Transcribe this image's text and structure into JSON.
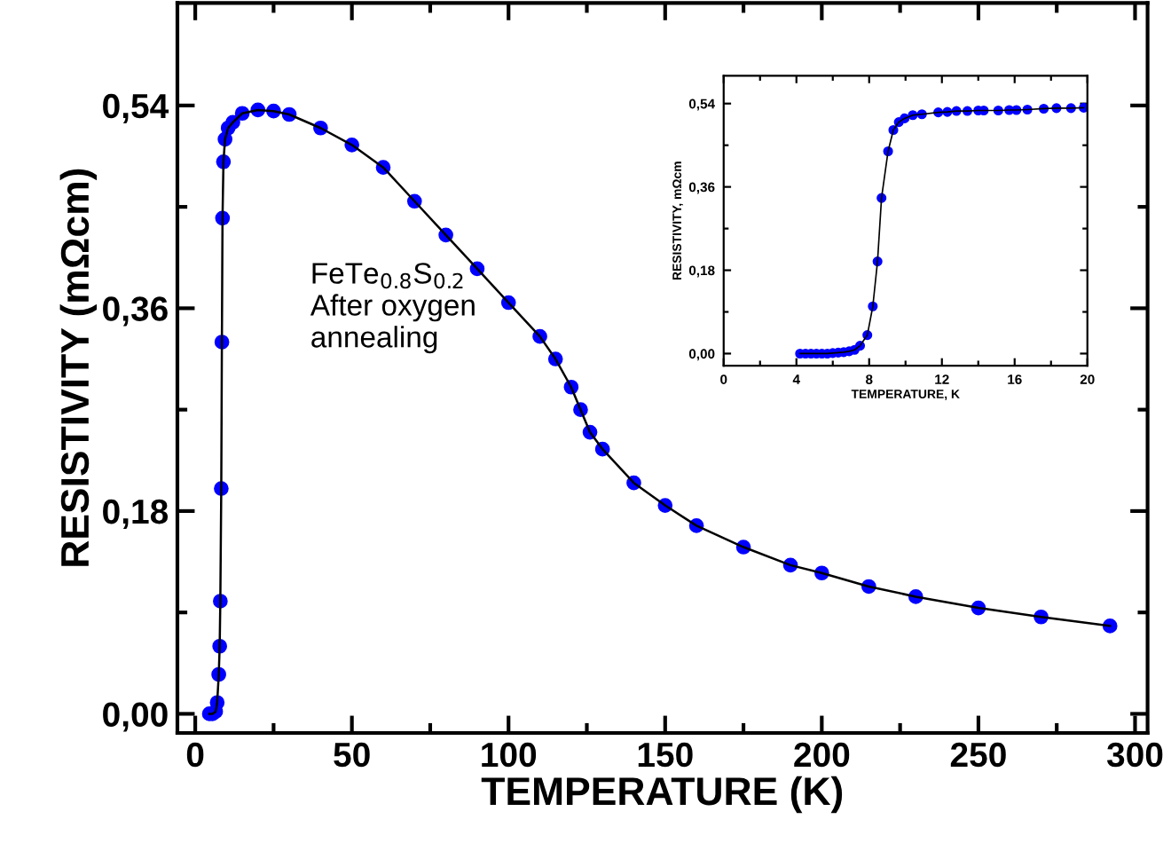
{
  "chart_data": [
    {
      "type": "line",
      "xlabel": "TEMPERATURE (K)",
      "ylabel": "RESISTIVITY (mΩcm)",
      "marker": "circle",
      "line_style": "solid",
      "grid": false,
      "legend": false,
      "annotations": [
        "FeTe$_{0.8}$S$_{0.2}$\nAfter oxygen\nannealing"
      ],
      "xlim": [
        -5.7,
        304
      ],
      "ylim": [
        -0.017,
        0.631
      ],
      "xticks": [
        0,
        {
          "value": 25,
          "label": null
        },
        50,
        {
          "value": 75,
          "label": null
        },
        100,
        {
          "value": 125,
          "label": null
        },
        150,
        {
          "value": 175,
          "label": null
        },
        200,
        {
          "value": 225,
          "label": null
        },
        250,
        {
          "value": 275,
          "label": null
        },
        300
      ],
      "yticks": [
        {
          "value": 0,
          "label": "0,00"
        },
        {
          "value": 0.09,
          "label": null
        },
        {
          "value": 0.18,
          "label": "0,18"
        },
        {
          "value": 0.27,
          "label": null
        },
        {
          "value": 0.36,
          "label": "0,36"
        },
        {
          "value": 0.45,
          "label": null
        },
        {
          "value": 0.54,
          "label": "0,54"
        }
      ],
      "series": [
        {
          "color": "#0000ff",
          "x": [
            4.5,
            5.5,
            6.5,
            7,
            7.5,
            7.8,
            8,
            8.3,
            8.5,
            8.7,
            9,
            9.5,
            10.5,
            12,
            15,
            20,
            25,
            30,
            40,
            50,
            60,
            70,
            80,
            90,
            100,
            110,
            115,
            120,
            123,
            126,
            130,
            140,
            150,
            160,
            175,
            190,
            200,
            215,
            230,
            250,
            270,
            292
          ],
          "values": [
            0.0,
            0.0,
            0.002,
            0.01,
            0.035,
            0.06,
            0.1,
            0.2,
            0.33,
            0.44,
            0.49,
            0.51,
            0.52,
            0.525,
            0.533,
            0.536,
            0.535,
            0.532,
            0.52,
            0.505,
            0.485,
            0.455,
            0.425,
            0.395,
            0.365,
            0.335,
            0.315,
            0.29,
            0.27,
            0.25,
            0.235,
            0.205,
            0.185,
            0.167,
            0.148,
            0.132,
            0.125,
            0.113,
            0.104,
            0.094,
            0.086,
            0.078
          ]
        }
      ]
    },
    {
      "type": "line",
      "xlabel": "TEMPERATURE, K",
      "ylabel": "RESISTIVITY, mΩcm",
      "marker": "circle",
      "line_style": "solid",
      "grid": false,
      "legend": false,
      "xlim": [
        0,
        20
      ],
      "ylim": [
        -0.026,
        0.6
      ],
      "xticks": [
        0,
        {
          "value": 2,
          "label": null
        },
        4,
        {
          "value": 6,
          "label": null
        },
        8,
        {
          "value": 10,
          "label": null
        },
        12,
        {
          "value": 14,
          "label": null
        },
        16,
        {
          "value": 18,
          "label": null
        },
        20
      ],
      "yticks": [
        {
          "value": 0,
          "label": "0,00"
        },
        {
          "value": 0.09,
          "label": null
        },
        {
          "value": 0.18,
          "label": "0,18"
        },
        {
          "value": 0.27,
          "label": null
        },
        {
          "value": 0.36,
          "label": "0,36"
        },
        {
          "value": 0.45,
          "label": null
        },
        {
          "value": 0.54,
          "label": "0,54"
        }
      ],
      "series": [
        {
          "color": "#0000ff",
          "x": [
            4.2,
            4.5,
            4.8,
            5.1,
            5.4,
            5.7,
            6.0,
            6.3,
            6.6,
            6.9,
            7.2,
            7.5,
            7.9,
            8.2,
            8.46,
            8.68,
            9.04,
            9.33,
            9.63,
            9.95,
            10.4,
            10.9,
            11.8,
            12.3,
            12.8,
            13.4,
            14.0,
            14.3,
            15.1,
            15.7,
            16.1,
            16.7,
            17.6,
            18.3,
            19.1,
            19.8
          ],
          "values": [
            0,
            0,
            0,
            0,
            0,
            0,
            0.001,
            0.002,
            0.003,
            0.005,
            0.008,
            0.017,
            0.04,
            0.102,
            0.199,
            0.336,
            0.437,
            0.483,
            0.5,
            0.508,
            0.515,
            0.517,
            0.521,
            0.522,
            0.524,
            0.524,
            0.525,
            0.525,
            0.525,
            0.526,
            0.526,
            0.527,
            0.529,
            0.53,
            0.53,
            0.531
          ]
        }
      ]
    }
  ]
}
